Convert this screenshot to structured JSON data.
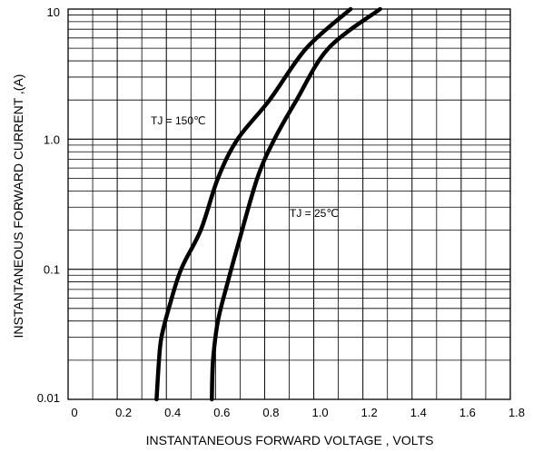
{
  "chart_data": {
    "type": "line",
    "title": "",
    "xlabel": "INSTANTANEOUS FORWARD VOLTAGE , VOLTS",
    "ylabel": "INSTANTANEOUS  FORWARD CURRENT ,(A)",
    "x_scale": "linear",
    "y_scale": "log",
    "xlim": [
      0,
      1.8
    ],
    "ylim": [
      0.01,
      10
    ],
    "x_ticks": [
      0,
      0.2,
      0.4,
      0.6,
      0.8,
      1.0,
      1.2,
      1.4,
      1.6,
      1.8
    ],
    "x_tick_labels": [
      "0",
      "0.2",
      "0.4",
      "0.6",
      "0.8",
      "1.0",
      "1.2",
      "1.4",
      "1.6",
      "1.8"
    ],
    "y_ticks": [
      0.01,
      0.1,
      1,
      10
    ],
    "y_tick_labels": [
      "0.01",
      "0.1",
      "1.0",
      "10"
    ],
    "grid": true,
    "series": [
      {
        "name": "TJ = 150℃",
        "points": [
          [
            0.36,
            0.01
          ],
          [
            0.37,
            0.02
          ],
          [
            0.38,
            0.03
          ],
          [
            0.41,
            0.05
          ],
          [
            0.46,
            0.1
          ],
          [
            0.54,
            0.2
          ],
          [
            0.61,
            0.5
          ],
          [
            0.69,
            1.0
          ],
          [
            0.82,
            2.0
          ],
          [
            0.97,
            5.0
          ],
          [
            1.15,
            10.0
          ]
        ]
      },
      {
        "name": "TJ = 25℃",
        "points": [
          [
            0.585,
            0.01
          ],
          [
            0.59,
            0.02
          ],
          [
            0.61,
            0.04
          ],
          [
            0.65,
            0.08
          ],
          [
            0.69,
            0.15
          ],
          [
            0.77,
            0.5
          ],
          [
            0.84,
            1.0
          ],
          [
            0.93,
            2.0
          ],
          [
            1.06,
            5.0
          ],
          [
            1.27,
            10.0
          ]
        ]
      }
    ]
  }
}
